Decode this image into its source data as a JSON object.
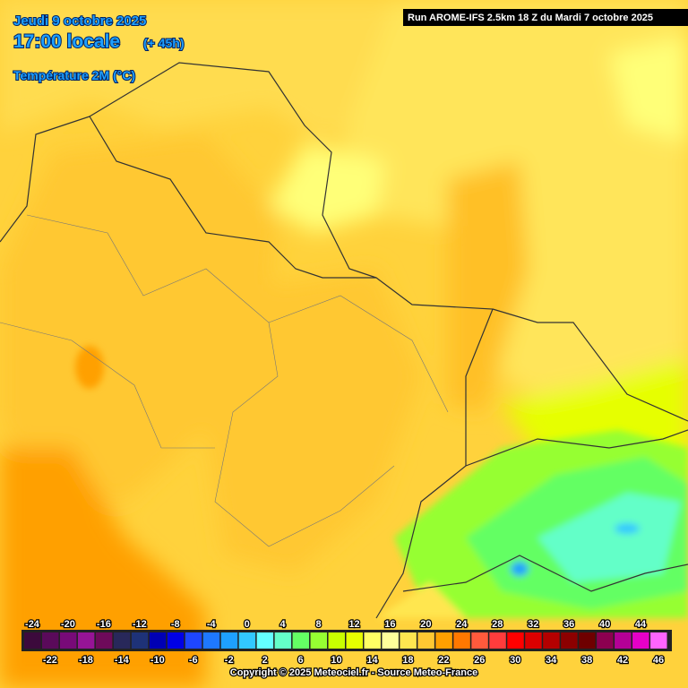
{
  "header": {
    "date": "Jeudi 9 octobre 2025",
    "time": "17:00 locale",
    "lead": "(+ 45h)",
    "parameter": "Température 2M (°C)",
    "run": "Run AROME-IFS 2.5km 18 Z du Mardi 7 octobre 2025"
  },
  "legend": {
    "ticks": [
      -24,
      -22,
      -20,
      -18,
      -16,
      -14,
      -12,
      -10,
      -8,
      -6,
      -4,
      -2,
      0,
      2,
      4,
      6,
      8,
      10,
      12,
      14,
      16,
      18,
      20,
      22,
      24,
      26,
      28,
      30,
      32,
      34,
      36,
      38,
      40,
      42,
      44,
      46
    ],
    "colors": [
      "#3c0a3c",
      "#5a0a5a",
      "#780a78",
      "#961496",
      "#6e0a5a",
      "#28285a",
      "#1e3278",
      "#0000b4",
      "#0000e6",
      "#1e46ff",
      "#1e78ff",
      "#1ea0ff",
      "#32c8ff",
      "#64ffff",
      "#64ffc8",
      "#64ff64",
      "#96ff32",
      "#c8ff00",
      "#e6ff00",
      "#ffff64",
      "#ffff9b",
      "#ffe650",
      "#ffc832",
      "#ffa000",
      "#ff7800",
      "#ff5a3c",
      "#ff3c3c",
      "#ff0000",
      "#dc0000",
      "#b40000",
      "#8c0000",
      "#6e0000",
      "#8c0050",
      "#b40096",
      "#e600c8",
      "#ff64ff"
    ]
  },
  "footer": {
    "copyright": "Copyright © 2025 Meteociel.fr - Source Meteo-France"
  }
}
